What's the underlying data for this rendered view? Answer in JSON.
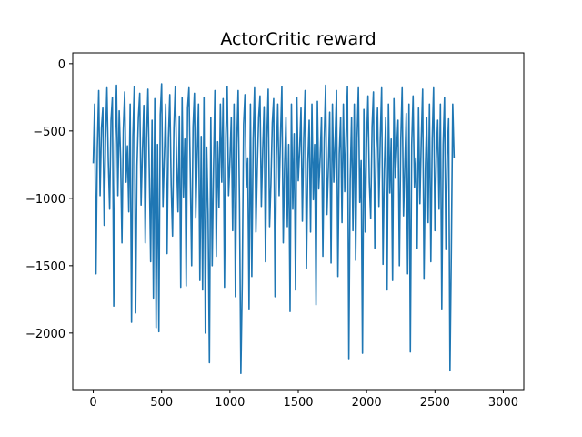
{
  "chart_data": {
    "type": "line",
    "title": "ActorCritic reward",
    "xlabel": "",
    "ylabel": "",
    "xlim": [
      -150,
      3150
    ],
    "ylim": [
      -2420,
      80
    ],
    "x_ticks": [
      0,
      500,
      1000,
      1500,
      2000,
      2500,
      3000
    ],
    "y_ticks": [
      0,
      -500,
      -1000,
      -1500,
      -2000
    ],
    "x_tick_labels": [
      "0",
      "500",
      "1000",
      "1500",
      "2000",
      "2500",
      "3000"
    ],
    "y_tick_labels": [
      "0",
      "−500",
      "−1000",
      "−1500",
      "−2000"
    ],
    "grid": false,
    "legend": "none",
    "color": "#1f77b4",
    "series": [
      {
        "x_start": 0,
        "x_step": 10,
        "values": [
          -740,
          -300,
          -1560,
          -620,
          -200,
          -980,
          -480,
          -330,
          -1200,
          -560,
          -180,
          -720,
          -1080,
          -420,
          -250,
          -1800,
          -600,
          -160,
          -980,
          -350,
          -700,
          -1330,
          -490,
          -210,
          -880,
          -610,
          -1100,
          -300,
          -1920,
          -540,
          -170,
          -1850,
          -760,
          -400,
          -220,
          -1050,
          -650,
          -310,
          -1330,
          -560,
          -190,
          -810,
          -1470,
          -420,
          -1740,
          -260,
          -1960,
          -600,
          -1990,
          -380,
          -150,
          -1060,
          -700,
          -300,
          -1410,
          -550,
          -230,
          -900,
          -1280,
          -480,
          -170,
          -730,
          -1100,
          -390,
          -1660,
          -250,
          -990,
          -560,
          -1650,
          -330,
          -180,
          -820,
          -1500,
          -470,
          -220,
          -1140,
          -680,
          -300,
          -1610,
          -540,
          -1680,
          -250,
          -2000,
          -620,
          -1120,
          -2220,
          -400,
          -1500,
          -780,
          -200,
          -1430,
          -580,
          -1070,
          -300,
          -880,
          -260,
          -1660,
          -530,
          -170,
          -980,
          -720,
          -400,
          -1240,
          -300,
          -1730,
          -600,
          -200,
          -1040,
          -2300,
          -1630,
          -450,
          -230,
          -920,
          -700,
          -1820,
          -300,
          -1580,
          -560,
          -180,
          -1250,
          -780,
          -400,
          -240,
          -1060,
          -640,
          -320,
          -1470,
          -560,
          -190,
          -1210,
          -890,
          -440,
          -260,
          -1730,
          -690,
          -300,
          -980,
          -540,
          -170,
          -1330,
          -760,
          -400,
          -1210,
          -600,
          -1840,
          -300,
          -1080,
          -520,
          -1680,
          -250,
          -870,
          -640,
          -330,
          -1170,
          -560,
          -200,
          -1520,
          -740,
          -420,
          -1250,
          -300,
          -1010,
          -600,
          -1790,
          -280,
          -930,
          -700,
          -400,
          -1430,
          -560,
          -160,
          -1120,
          -780,
          -360,
          -1480,
          -300,
          -880,
          -560,
          -200,
          -1580,
          -670,
          -400,
          -1180,
          -300,
          -950,
          -520,
          -170,
          -2190,
          -860,
          -400,
          -1240,
          -300,
          -1460,
          -560,
          -180,
          -1030,
          -720,
          -2150,
          -340,
          -1250,
          -590,
          -240,
          -880,
          -1150,
          -470,
          -210,
          -1370,
          -640,
          -330,
          -1060,
          -560,
          -180,
          -1490,
          -780,
          -400,
          -1680,
          -300,
          -960,
          -560,
          -1610,
          -260,
          -850,
          -630,
          -420,
          -1500,
          -570,
          -180,
          -1130,
          -750,
          -370,
          -1560,
          -300,
          -2140,
          -600,
          -240,
          -920,
          -700,
          -1370,
          -330,
          -1040,
          -560,
          -190,
          -1600,
          -780,
          -400,
          -1180,
          -300,
          -1470,
          -560,
          -180,
          -1240,
          -700,
          -420,
          -1080,
          -300,
          -1820,
          -600,
          -250,
          -1380,
          -680,
          -410,
          -2280,
          -1380,
          -300,
          -700
        ]
      }
    ]
  }
}
